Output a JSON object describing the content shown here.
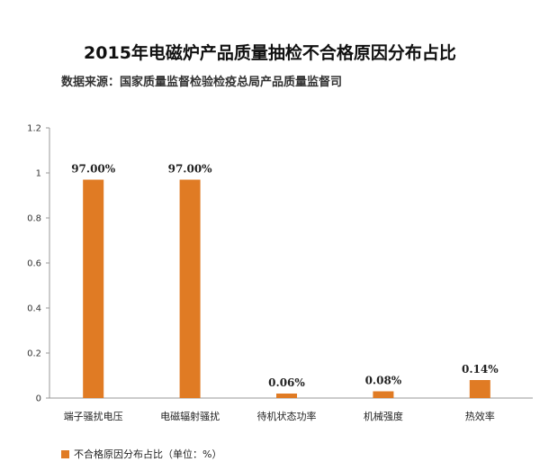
{
  "chart_data": {
    "type": "bar",
    "title": "2015年电磁炉产品质量抽检不合格原因分布占比",
    "subtitle": "数据来源：国家质量监督检验检疫总局产品质量监督司",
    "categories": [
      "端子骚扰电压",
      "电磁辐射骚扰",
      "待机状态功率",
      "机械强度",
      "热效率"
    ],
    "series": [
      {
        "name": "不合格原因分布占比（单位：%）",
        "values": [
          0.97,
          0.97,
          0.0006,
          0.0008,
          0.0014
        ],
        "labels": [
          "97.00%",
          "97.00%",
          "0.06%",
          "0.08%",
          "0.14%"
        ],
        "display_values": [
          0.97,
          0.97,
          0.02,
          0.03,
          0.08
        ]
      }
    ],
    "ylim": [
      0,
      1.2
    ],
    "yticks": [
      "0",
      "0.2",
      "0.4",
      "0.6",
      "0.8",
      "1",
      "1.2"
    ],
    "grid": false,
    "legend_position": "bottom-left",
    "bar_color": "#e07b24"
  }
}
